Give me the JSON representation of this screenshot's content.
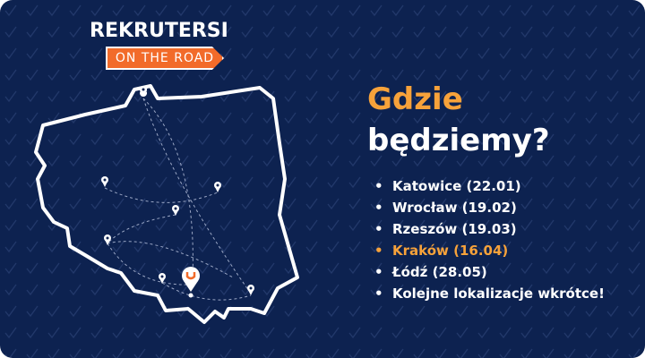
{
  "logo": {
    "brand": "REKRUTERSI",
    "tagline": "ON THE ROAD"
  },
  "heading": {
    "line1": "Gdzie",
    "line2": "będziemy?"
  },
  "locations": [
    {
      "label": "Katowice (22.01)",
      "highlighted": false
    },
    {
      "label": "Wrocław (19.02)",
      "highlighted": false
    },
    {
      "label": "Rzeszów (19.03)",
      "highlighted": false
    },
    {
      "label": "Kraków (16.04)",
      "highlighted": true
    },
    {
      "label": "Łódź (28.05)",
      "highlighted": false
    },
    {
      "label": "Kolejne lokalizacje wkrótce!",
      "highlighted": false
    }
  ],
  "colors": {
    "background": "#0d2250",
    "accent": "#f7a23a",
    "brand_orange": "#f26b2a",
    "text": "#ffffff"
  },
  "icons": {
    "background_pattern": "checkmark-icon",
    "map_pin": "map-pin-icon"
  }
}
